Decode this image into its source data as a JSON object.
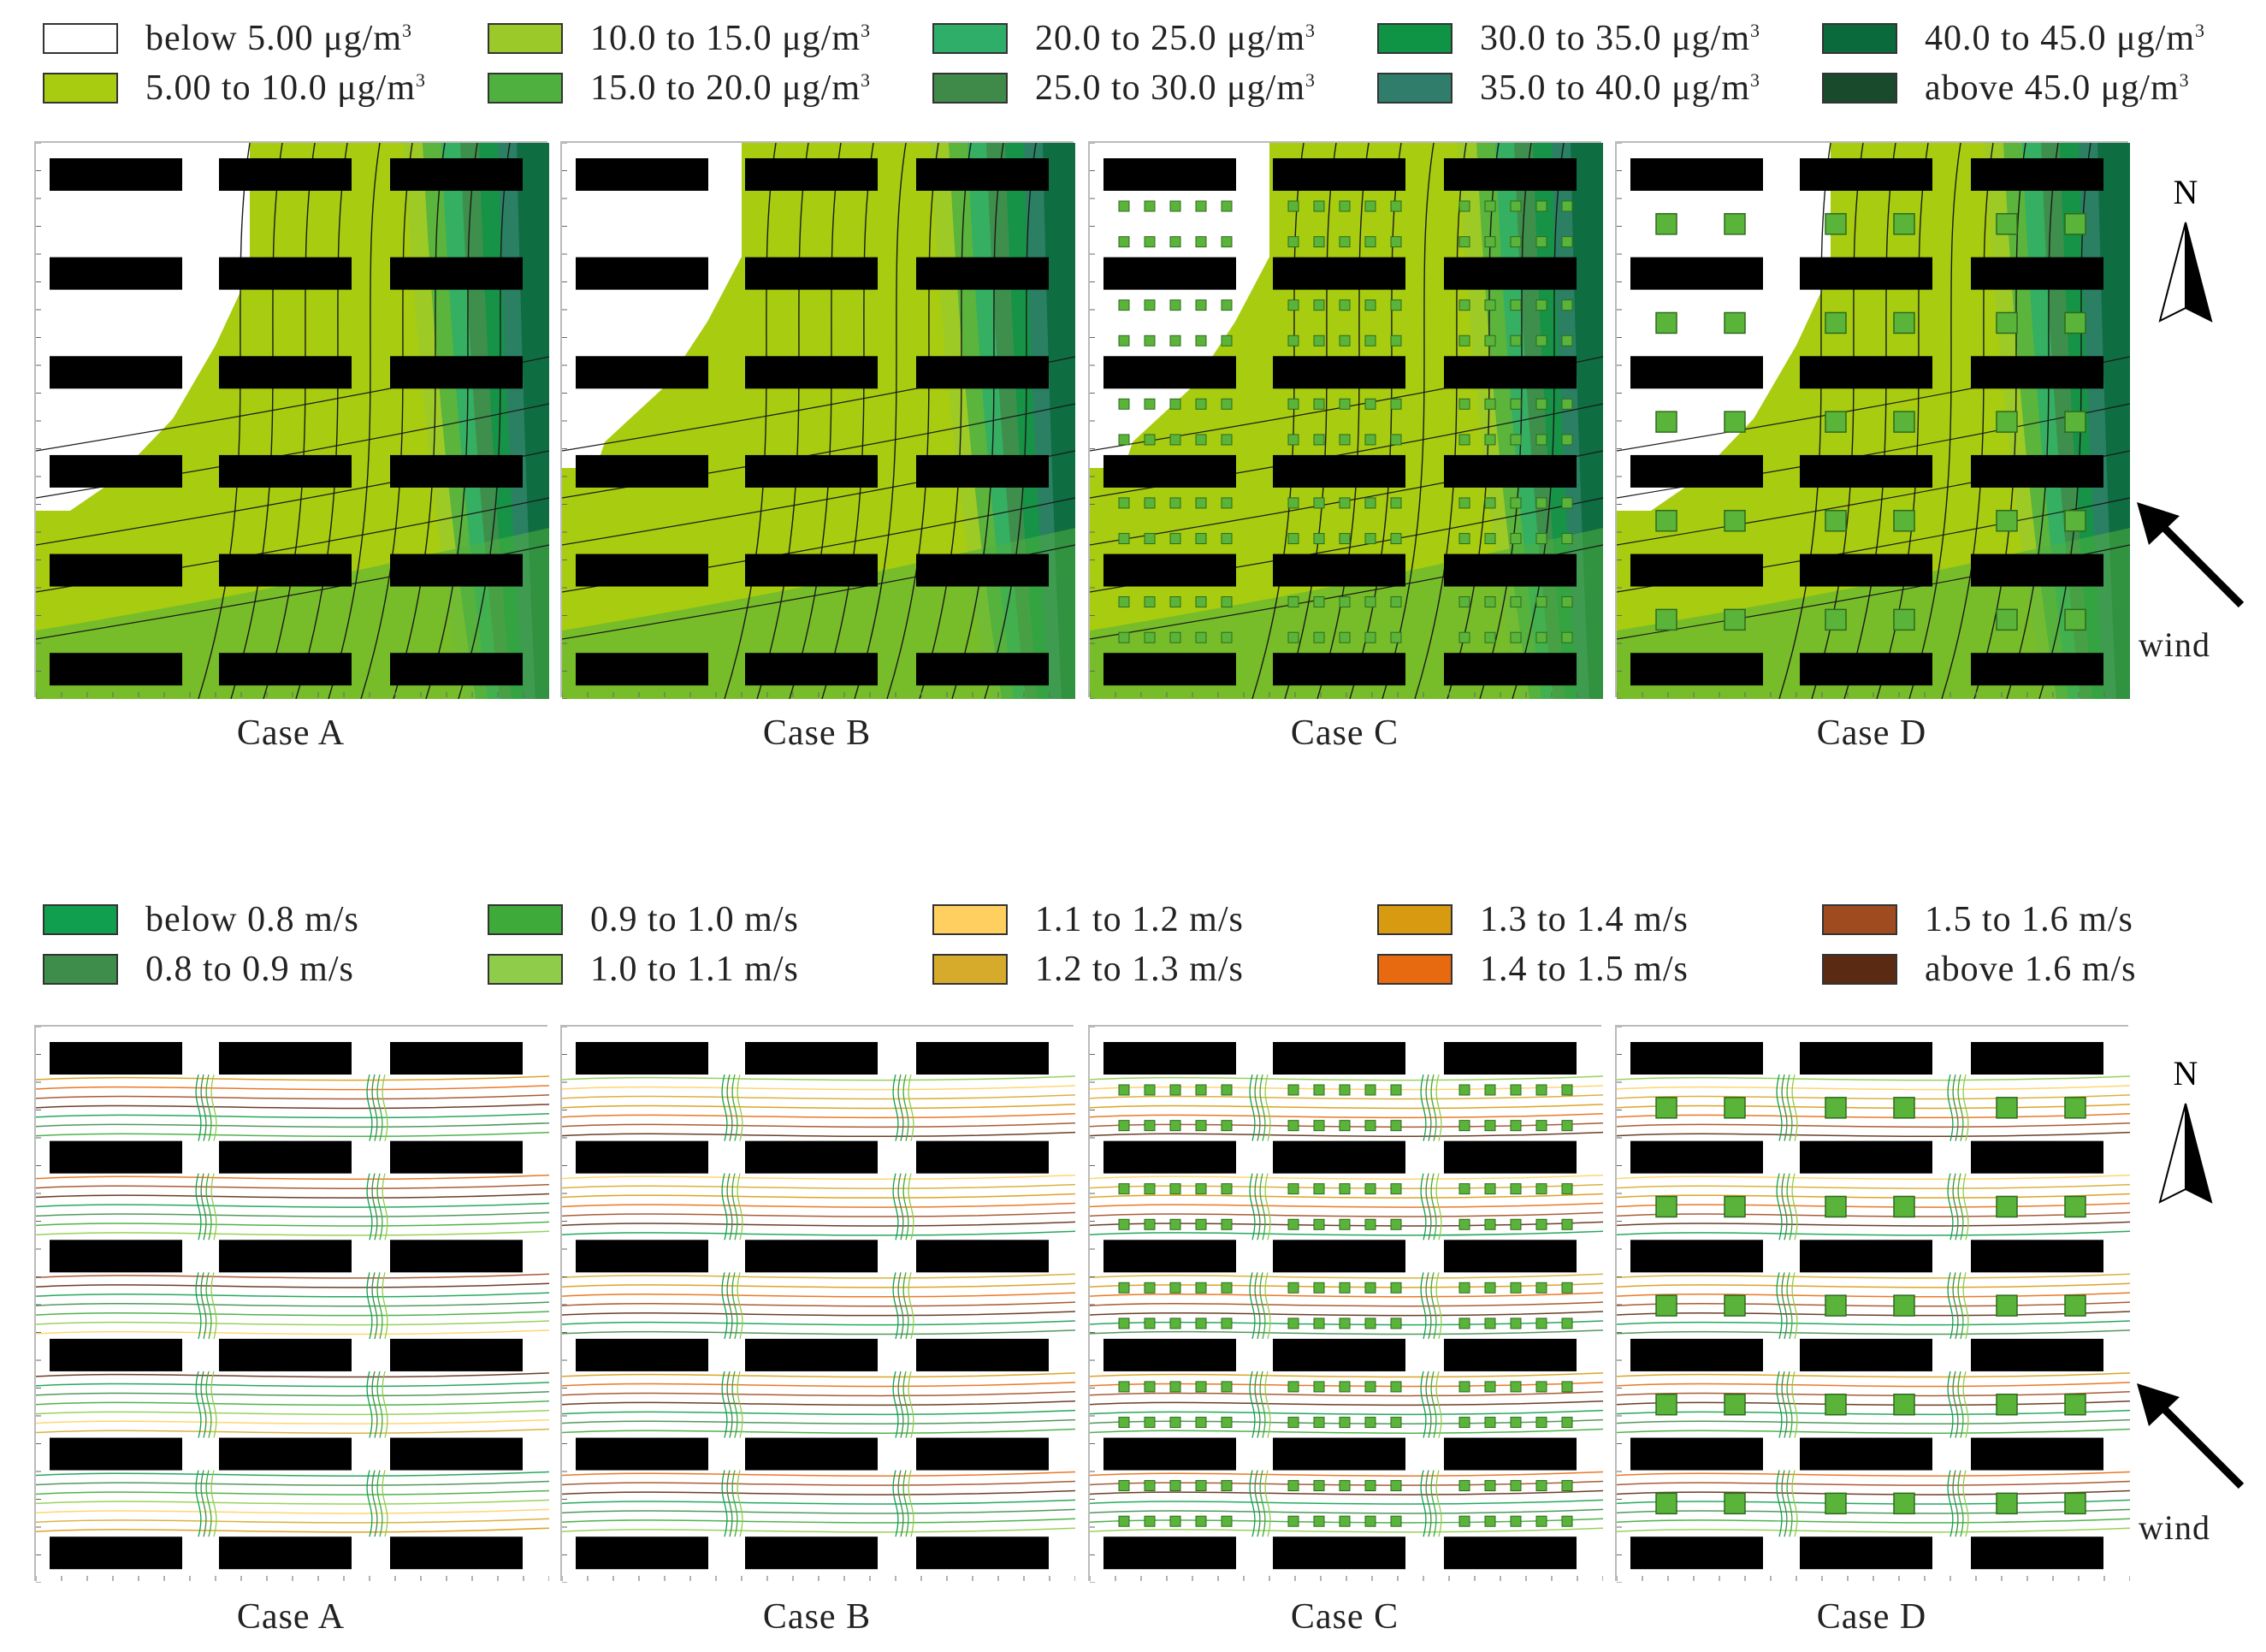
{
  "pm_legend": {
    "items": [
      {
        "label": "below 5.00 μg/m",
        "sup": "3",
        "color": "#ffffff"
      },
      {
        "label": "5.00 to 10.0 μg/m",
        "sup": "3",
        "color": "#a8cc0f"
      },
      {
        "label": "10.0 to 15.0 μg/m",
        "sup": "3",
        "color": "#9cc92a"
      },
      {
        "label": "15.0 to 20.0 μg/m",
        "sup": "3",
        "color": "#4fb040"
      },
      {
        "label": "20.0 to 25.0 μg/m",
        "sup": "3",
        "color": "#2fae6a"
      },
      {
        "label": "25.0 to 30.0 μg/m",
        "sup": "3",
        "color": "#3f8a48"
      },
      {
        "label": "30.0 to 35.0 μg/m",
        "sup": "3",
        "color": "#0f9445"
      },
      {
        "label": "35.0 to 40.0 μg/m",
        "sup": "3",
        "color": "#2f7d6a"
      },
      {
        "label": "40.0 to 45.0 μg/m",
        "sup": "3",
        "color": "#0b6a3c"
      },
      {
        "label": "above 45.0 μg/m",
        "sup": "3",
        "color": "#1a4a2c"
      }
    ]
  },
  "pm_panels": {
    "cases": [
      {
        "label": "Case A",
        "white_region": "large",
        "trees": "none"
      },
      {
        "label": "Case B",
        "white_region": "medium",
        "trees": "none"
      },
      {
        "label": "Case C",
        "white_region": "medium",
        "trees": "dense"
      },
      {
        "label": "Case D",
        "white_region": "large",
        "trees": "sparse"
      }
    ]
  },
  "wind_legend": {
    "items": [
      {
        "label": "below 0.8 m/s",
        "color": "#0f9f4e"
      },
      {
        "label": "0.8 to 0.9 m/s",
        "color": "#3e8d4a"
      },
      {
        "label": "0.9 to 1.0 m/s",
        "color": "#3daa3a"
      },
      {
        "label": "1.0 to 1.1 m/s",
        "color": "#8fcc4a"
      },
      {
        "label": "1.1 to 1.2 m/s",
        "color": "#ffd060"
      },
      {
        "label": "1.2 to 1.3 m/s",
        "color": "#d6aa2a"
      },
      {
        "label": "1.3 to 1.4 m/s",
        "color": "#d89a10"
      },
      {
        "label": "1.4 to 1.5 m/s",
        "color": "#e86a10"
      },
      {
        "label": "1.5 to 1.6 m/s",
        "color": "#a04a20"
      },
      {
        "label": "above 1.6 m/s",
        "color": "#5a2a12"
      }
    ]
  },
  "wind_panels": {
    "cases": [
      {
        "label": "Case A",
        "trees": "none"
      },
      {
        "label": "Case B",
        "trees": "none"
      },
      {
        "label": "Case C",
        "trees": "dense"
      },
      {
        "label": "Case D",
        "trees": "sparse"
      }
    ]
  },
  "compass": {
    "north_label": "N",
    "wind_label": "wind"
  },
  "colors": {
    "building": "#000000",
    "tree": "#5ab43a",
    "tree_border": "#2e6a1e",
    "isoline": "#1a1a1a"
  }
}
